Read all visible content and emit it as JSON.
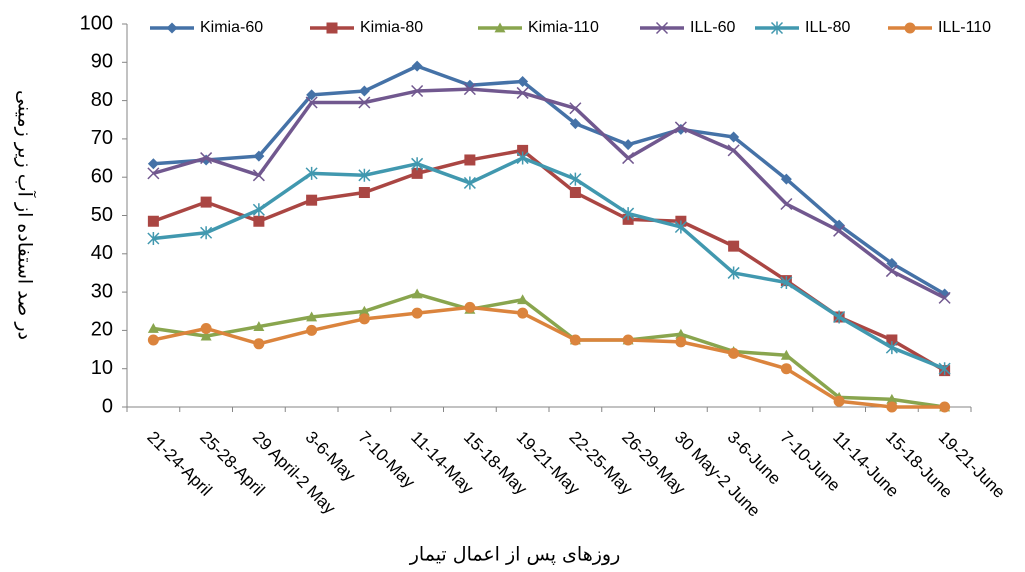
{
  "chart_data": {
    "type": "line",
    "y_label": "در صد استفاده از آب زیر زمینی",
    "x_label": "روزهای پس از اعمال تیمار",
    "categories": [
      "21-24-April",
      "25-28-April",
      "29 April-2 May",
      "3-6-May",
      "7-10-May",
      "11-14-May",
      "15-18-May",
      "19-21-May",
      "22-25-May",
      "26-29-May",
      "30 May-2 June",
      "3-6-June",
      "7-10-June",
      "11-14-June",
      "15-18-June",
      "19-21-June"
    ],
    "series": [
      {
        "name": "Kimia-60",
        "color": "#4572a7",
        "marker": "diamond",
        "values": [
          63.5,
          64.5,
          65.5,
          81.5,
          82.5,
          89,
          84,
          85,
          74,
          68.5,
          72.5,
          70.5,
          59.5,
          47.5,
          37.5,
          29.5
        ]
      },
      {
        "name": "Kimia-80",
        "color": "#aa4643",
        "marker": "square",
        "values": [
          48.5,
          53.5,
          48.5,
          54,
          56,
          61,
          64.5,
          67,
          56,
          49,
          48.5,
          42,
          33,
          23.5,
          17.5,
          9.5
        ]
      },
      {
        "name": "Kimia-110",
        "color": "#89a54e",
        "marker": "triangle",
        "values": [
          20.5,
          18.5,
          21,
          23.5,
          25,
          29.5,
          25.5,
          28,
          17.5,
          17.5,
          19,
          14.5,
          13.5,
          2.5,
          2,
          0
        ]
      },
      {
        "name": "ILL-60",
        "color": "#71588f",
        "marker": "x",
        "values": [
          61,
          65,
          60.5,
          79.5,
          79.5,
          82.5,
          83,
          82,
          78,
          65,
          73,
          67,
          53,
          46,
          35.5,
          28.5
        ]
      },
      {
        "name": "ILL-80",
        "color": "#4198af",
        "marker": "star",
        "values": [
          44,
          45.5,
          51.5,
          61,
          60.5,
          63.5,
          58.5,
          65,
          59.5,
          50.5,
          47,
          35,
          32.5,
          23.5,
          15.5,
          10
        ]
      },
      {
        "name": "ILL-110",
        "color": "#db843d",
        "marker": "circle",
        "values": [
          17.5,
          20.5,
          16.5,
          20,
          23,
          24.5,
          26,
          24.5,
          17.5,
          17.5,
          17,
          14,
          10,
          1.5,
          0,
          0
        ]
      }
    ],
    "ylim": [
      0,
      100
    ],
    "yticks": [
      0,
      10,
      20,
      30,
      40,
      50,
      60,
      70,
      80,
      90,
      100
    ],
    "legend": "top"
  }
}
